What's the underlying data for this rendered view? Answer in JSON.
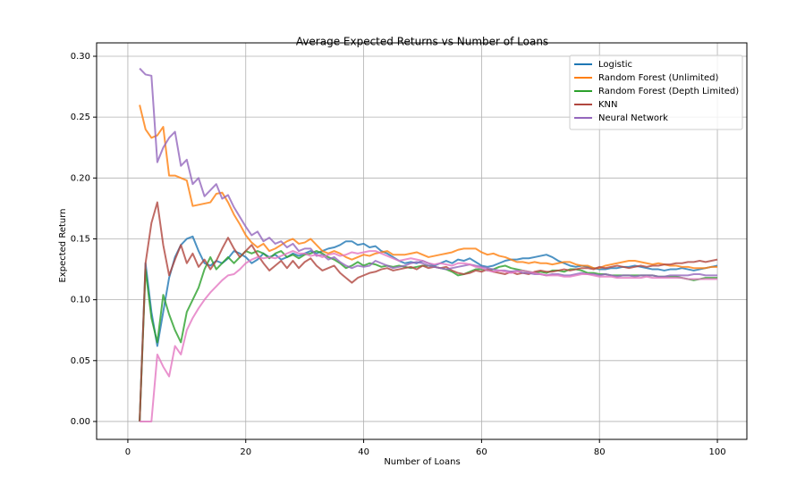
{
  "chart_data": {
    "type": "line",
    "title": "Average Expected Returns vs Number of Loans",
    "x_label": "Number of Loans",
    "y_label": "Expected Return",
    "x": [
      2,
      3,
      4,
      5,
      6,
      7,
      8,
      9,
      10,
      11,
      12,
      13,
      14,
      15,
      16,
      17,
      18,
      19,
      20,
      21,
      22,
      23,
      24,
      25,
      26,
      27,
      28,
      29,
      30,
      31,
      32,
      33,
      34,
      35,
      36,
      37,
      38,
      39,
      40,
      41,
      42,
      43,
      44,
      45,
      46,
      47,
      48,
      49,
      50,
      51,
      52,
      53,
      54,
      55,
      56,
      57,
      58,
      59,
      60,
      61,
      62,
      63,
      64,
      65,
      66,
      67,
      68,
      69,
      70,
      71,
      72,
      73,
      74,
      75,
      76,
      77,
      78,
      79,
      80,
      81,
      82,
      83,
      84,
      85,
      86,
      87,
      88,
      89,
      90,
      91,
      92,
      93,
      94,
      95,
      96,
      97,
      98,
      99,
      100
    ],
    "series": [
      {
        "name": "Logistic",
        "color": "#1f77b4",
        "values": [
          0,
          0.13,
          0.09,
          0.062,
          0.09,
          0.118,
          0.135,
          0.145,
          0.15,
          0.152,
          0.14,
          0.13,
          0.128,
          0.132,
          0.13,
          0.134,
          0.14,
          0.138,
          0.135,
          0.13,
          0.133,
          0.138,
          0.135,
          0.137,
          0.133,
          0.135,
          0.138,
          0.136,
          0.138,
          0.14,
          0.138,
          0.14,
          0.142,
          0.143,
          0.145,
          0.148,
          0.148,
          0.145,
          0.146,
          0.143,
          0.144,
          0.14,
          0.138,
          0.135,
          0.132,
          0.13,
          0.131,
          0.13,
          0.132,
          0.13,
          0.128,
          0.13,
          0.132,
          0.13,
          0.133,
          0.132,
          0.134,
          0.131,
          0.128,
          0.127,
          0.128,
          0.13,
          0.132,
          0.133,
          0.133,
          0.134,
          0.134,
          0.135,
          0.136,
          0.137,
          0.135,
          0.132,
          0.13,
          0.128,
          0.127,
          0.128,
          0.127,
          0.126,
          0.125,
          0.125,
          0.126,
          0.126,
          0.127,
          0.127,
          0.128,
          0.127,
          0.126,
          0.125,
          0.125,
          0.124,
          0.125,
          0.125,
          0.126,
          0.125,
          0.124,
          0.125,
          0.126,
          0.127,
          0.128
        ]
      },
      {
        "name": "Random Forest (Unlimited)",
        "color": "#ff7f0e",
        "values": [
          0.26,
          0.24,
          0.233,
          0.235,
          0.242,
          0.202,
          0.202,
          0.2,
          0.198,
          0.177,
          0.178,
          0.179,
          0.18,
          0.187,
          0.188,
          0.18,
          0.17,
          0.162,
          0.153,
          0.147,
          0.143,
          0.146,
          0.14,
          0.142,
          0.145,
          0.148,
          0.15,
          0.146,
          0.147,
          0.15,
          0.145,
          0.14,
          0.138,
          0.14,
          0.138,
          0.135,
          0.133,
          0.135,
          0.137,
          0.136,
          0.138,
          0.139,
          0.14,
          0.137,
          0.137,
          0.137,
          0.138,
          0.139,
          0.137,
          0.135,
          0.136,
          0.137,
          0.138,
          0.139,
          0.141,
          0.142,
          0.142,
          0.142,
          0.139,
          0.137,
          0.138,
          0.136,
          0.135,
          0.133,
          0.131,
          0.131,
          0.13,
          0.131,
          0.13,
          0.13,
          0.129,
          0.13,
          0.131,
          0.131,
          0.129,
          0.128,
          0.128,
          0.126,
          0.126,
          0.128,
          0.129,
          0.13,
          0.131,
          0.132,
          0.132,
          0.131,
          0.13,
          0.129,
          0.13,
          0.129,
          0.128,
          0.128,
          0.127,
          0.127,
          0.126,
          0.126,
          0.126,
          0.127,
          0.127
        ]
      },
      {
        "name": "Random Forest (Depth Limited)",
        "color": "#2ca02c",
        "values": [
          0,
          0.125,
          0.085,
          0.065,
          0.104,
          0.088,
          0.075,
          0.065,
          0.09,
          0.1,
          0.11,
          0.125,
          0.135,
          0.125,
          0.13,
          0.135,
          0.13,
          0.135,
          0.14,
          0.138,
          0.14,
          0.138,
          0.134,
          0.138,
          0.14,
          0.135,
          0.137,
          0.134,
          0.137,
          0.138,
          0.14,
          0.138,
          0.135,
          0.133,
          0.13,
          0.126,
          0.128,
          0.131,
          0.128,
          0.13,
          0.129,
          0.127,
          0.128,
          0.127,
          0.128,
          0.127,
          0.126,
          0.127,
          0.128,
          0.128,
          0.127,
          0.126,
          0.125,
          0.123,
          0.12,
          0.121,
          0.123,
          0.125,
          0.125,
          0.124,
          0.125,
          0.127,
          0.128,
          0.126,
          0.125,
          0.124,
          0.123,
          0.122,
          0.123,
          0.122,
          0.124,
          0.124,
          0.123,
          0.125,
          0.125,
          0.124,
          0.122,
          0.122,
          0.121,
          0.121,
          0.12,
          0.12,
          0.12,
          0.12,
          0.12,
          0.12,
          0.12,
          0.12,
          0.119,
          0.119,
          0.119,
          0.119,
          0.118,
          0.117,
          0.116,
          0.117,
          0.118,
          0.118,
          0.118
        ]
      },
      {
        "name": "KNN",
        "color": "#b0463e",
        "values": [
          0,
          0.13,
          0.163,
          0.18,
          0.145,
          0.12,
          0.133,
          0.145,
          0.13,
          0.138,
          0.127,
          0.133,
          0.125,
          0.132,
          0.142,
          0.151,
          0.142,
          0.135,
          0.14,
          0.145,
          0.137,
          0.13,
          0.124,
          0.128,
          0.132,
          0.126,
          0.132,
          0.126,
          0.131,
          0.134,
          0.128,
          0.124,
          0.126,
          0.128,
          0.122,
          0.118,
          0.114,
          0.118,
          0.12,
          0.122,
          0.123,
          0.125,
          0.126,
          0.124,
          0.125,
          0.126,
          0.127,
          0.125,
          0.128,
          0.126,
          0.127,
          0.126,
          0.127,
          0.124,
          0.122,
          0.121,
          0.122,
          0.124,
          0.123,
          0.125,
          0.123,
          0.122,
          0.121,
          0.123,
          0.121,
          0.122,
          0.121,
          0.123,
          0.124,
          0.123,
          0.123,
          0.124,
          0.125,
          0.124,
          0.125,
          0.126,
          0.126,
          0.125,
          0.127,
          0.126,
          0.127,
          0.128,
          0.127,
          0.126,
          0.127,
          0.128,
          0.127,
          0.128,
          0.128,
          0.129,
          0.129,
          0.13,
          0.13,
          0.131,
          0.131,
          0.132,
          0.131,
          0.132,
          0.133
        ]
      },
      {
        "name": "Neural Network",
        "color": "#9467bd",
        "values": [
          0.29,
          0.285,
          0.284,
          0.213,
          0.225,
          0.233,
          0.238,
          0.21,
          0.215,
          0.195,
          0.2,
          0.185,
          0.19,
          0.195,
          0.183,
          0.186,
          0.176,
          0.168,
          0.16,
          0.153,
          0.156,
          0.148,
          0.151,
          0.146,
          0.148,
          0.143,
          0.146,
          0.14,
          0.142,
          0.142,
          0.136,
          0.137,
          0.133,
          0.135,
          0.131,
          0.128,
          0.126,
          0.128,
          0.127,
          0.128,
          0.132,
          0.13,
          0.128,
          0.126,
          0.127,
          0.128,
          0.13,
          0.131,
          0.13,
          0.128,
          0.127,
          0.126,
          0.125,
          0.126,
          0.127,
          0.128,
          0.129,
          0.128,
          0.127,
          0.126,
          0.125,
          0.124,
          0.124,
          0.123,
          0.124,
          0.122,
          0.122,
          0.121,
          0.121,
          0.12,
          0.121,
          0.121,
          0.12,
          0.12,
          0.121,
          0.122,
          0.121,
          0.121,
          0.12,
          0.121,
          0.12,
          0.119,
          0.12,
          0.12,
          0.119,
          0.12,
          0.12,
          0.12,
          0.119,
          0.119,
          0.12,
          0.12,
          0.12,
          0.12,
          0.121,
          0.121,
          0.12,
          0.12,
          0.12
        ]
      },
      {
        "color": "#e377c2",
        "values": [
          0,
          0,
          0,
          0.055,
          0.045,
          0.037,
          0.062,
          0.055,
          0.075,
          0.085,
          0.093,
          0.1,
          0.106,
          0.111,
          0.116,
          0.12,
          0.121,
          0.125,
          0.13,
          0.133,
          0.135,
          0.134,
          0.135,
          0.134,
          0.136,
          0.138,
          0.14,
          0.138,
          0.138,
          0.136,
          0.137,
          0.135,
          0.137,
          0.138,
          0.136,
          0.137,
          0.139,
          0.138,
          0.139,
          0.14,
          0.14,
          0.138,
          0.136,
          0.134,
          0.132,
          0.133,
          0.134,
          0.133,
          0.132,
          0.13,
          0.129,
          0.13,
          0.129,
          0.128,
          0.13,
          0.13,
          0.129,
          0.127,
          0.126,
          0.124,
          0.123,
          0.124,
          0.123,
          0.122,
          0.123,
          0.124,
          0.123,
          0.122,
          0.121,
          0.12,
          0.12,
          0.12,
          0.119,
          0.119,
          0.12,
          0.121,
          0.121,
          0.12,
          0.119,
          0.119,
          0.119,
          0.118,
          0.118,
          0.118,
          0.118,
          0.118,
          0.119,
          0.118,
          0.118,
          0.118,
          0.118,
          0.118,
          0.118,
          0.117,
          0.117,
          0.117,
          0.117,
          0.117,
          0.117
        ]
      }
    ],
    "xlim": [
      -5.3,
      105
    ],
    "ylim": [
      -0.0147,
      0.311
    ],
    "xticks": [
      0,
      20,
      40,
      60,
      80,
      100
    ],
    "yticks": [
      {
        "value": 0,
        "label": "0.00"
      },
      0.05,
      {
        "value": 0.1,
        "label": "0.10"
      },
      0.15,
      {
        "value": 0.2,
        "label": "0.20"
      },
      0.25,
      {
        "value": 0.3,
        "label": "0.30"
      }
    ],
    "grid": true,
    "legend": "upper right"
  }
}
